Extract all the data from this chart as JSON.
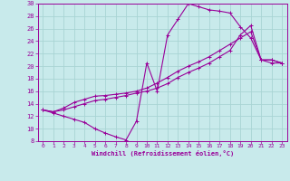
{
  "xlabel": "Windchill (Refroidissement éolien,°C)",
  "bg_color": "#c8eaeb",
  "line_color": "#990099",
  "grid_color": "#a8d4d4",
  "xlim": [
    -0.5,
    23.5
  ],
  "ylim": [
    8,
    30
  ],
  "xticks": [
    0,
    1,
    2,
    3,
    4,
    5,
    6,
    7,
    8,
    9,
    10,
    11,
    12,
    13,
    14,
    15,
    16,
    17,
    18,
    19,
    20,
    21,
    22,
    23
  ],
  "yticks": [
    8,
    10,
    12,
    14,
    16,
    18,
    20,
    22,
    24,
    26,
    28,
    30
  ],
  "line1_x": [
    0,
    1,
    2,
    3,
    4,
    5,
    6,
    7,
    8,
    9,
    10,
    11,
    12,
    13,
    14,
    15,
    16,
    17,
    18,
    19,
    20,
    21,
    22,
    23
  ],
  "line1_y": [
    13,
    12.5,
    12,
    11.5,
    11,
    10,
    9.3,
    8.7,
    8.2,
    11.2,
    20.5,
    16,
    25,
    27.5,
    30,
    29.5,
    29,
    28.8,
    28.5,
    26.3,
    24.5,
    21,
    20.5,
    20.5
  ],
  "line2_x": [
    0,
    1,
    2,
    3,
    4,
    5,
    6,
    7,
    8,
    9,
    10,
    11,
    12,
    13,
    14,
    15,
    16,
    17,
    18,
    19,
    20,
    21,
    22,
    23
  ],
  "line2_y": [
    13,
    12.7,
    13.3,
    14.2,
    14.7,
    15.2,
    15.3,
    15.5,
    15.7,
    16,
    16.5,
    17.3,
    18.2,
    19.2,
    20,
    20.7,
    21.5,
    22.5,
    23.5,
    24.5,
    25.5,
    21,
    21,
    20.5
  ],
  "line3_x": [
    0,
    1,
    2,
    3,
    4,
    5,
    6,
    7,
    8,
    9,
    10,
    11,
    12,
    13,
    14,
    15,
    16,
    17,
    18,
    19,
    20,
    21,
    22,
    23
  ],
  "line3_y": [
    13,
    12.7,
    13,
    13.5,
    14,
    14.5,
    14.7,
    15,
    15.3,
    15.7,
    16,
    16.5,
    17.2,
    18.2,
    19,
    19.7,
    20.5,
    21.5,
    22.5,
    25,
    26.5,
    21,
    21,
    20.5
  ]
}
